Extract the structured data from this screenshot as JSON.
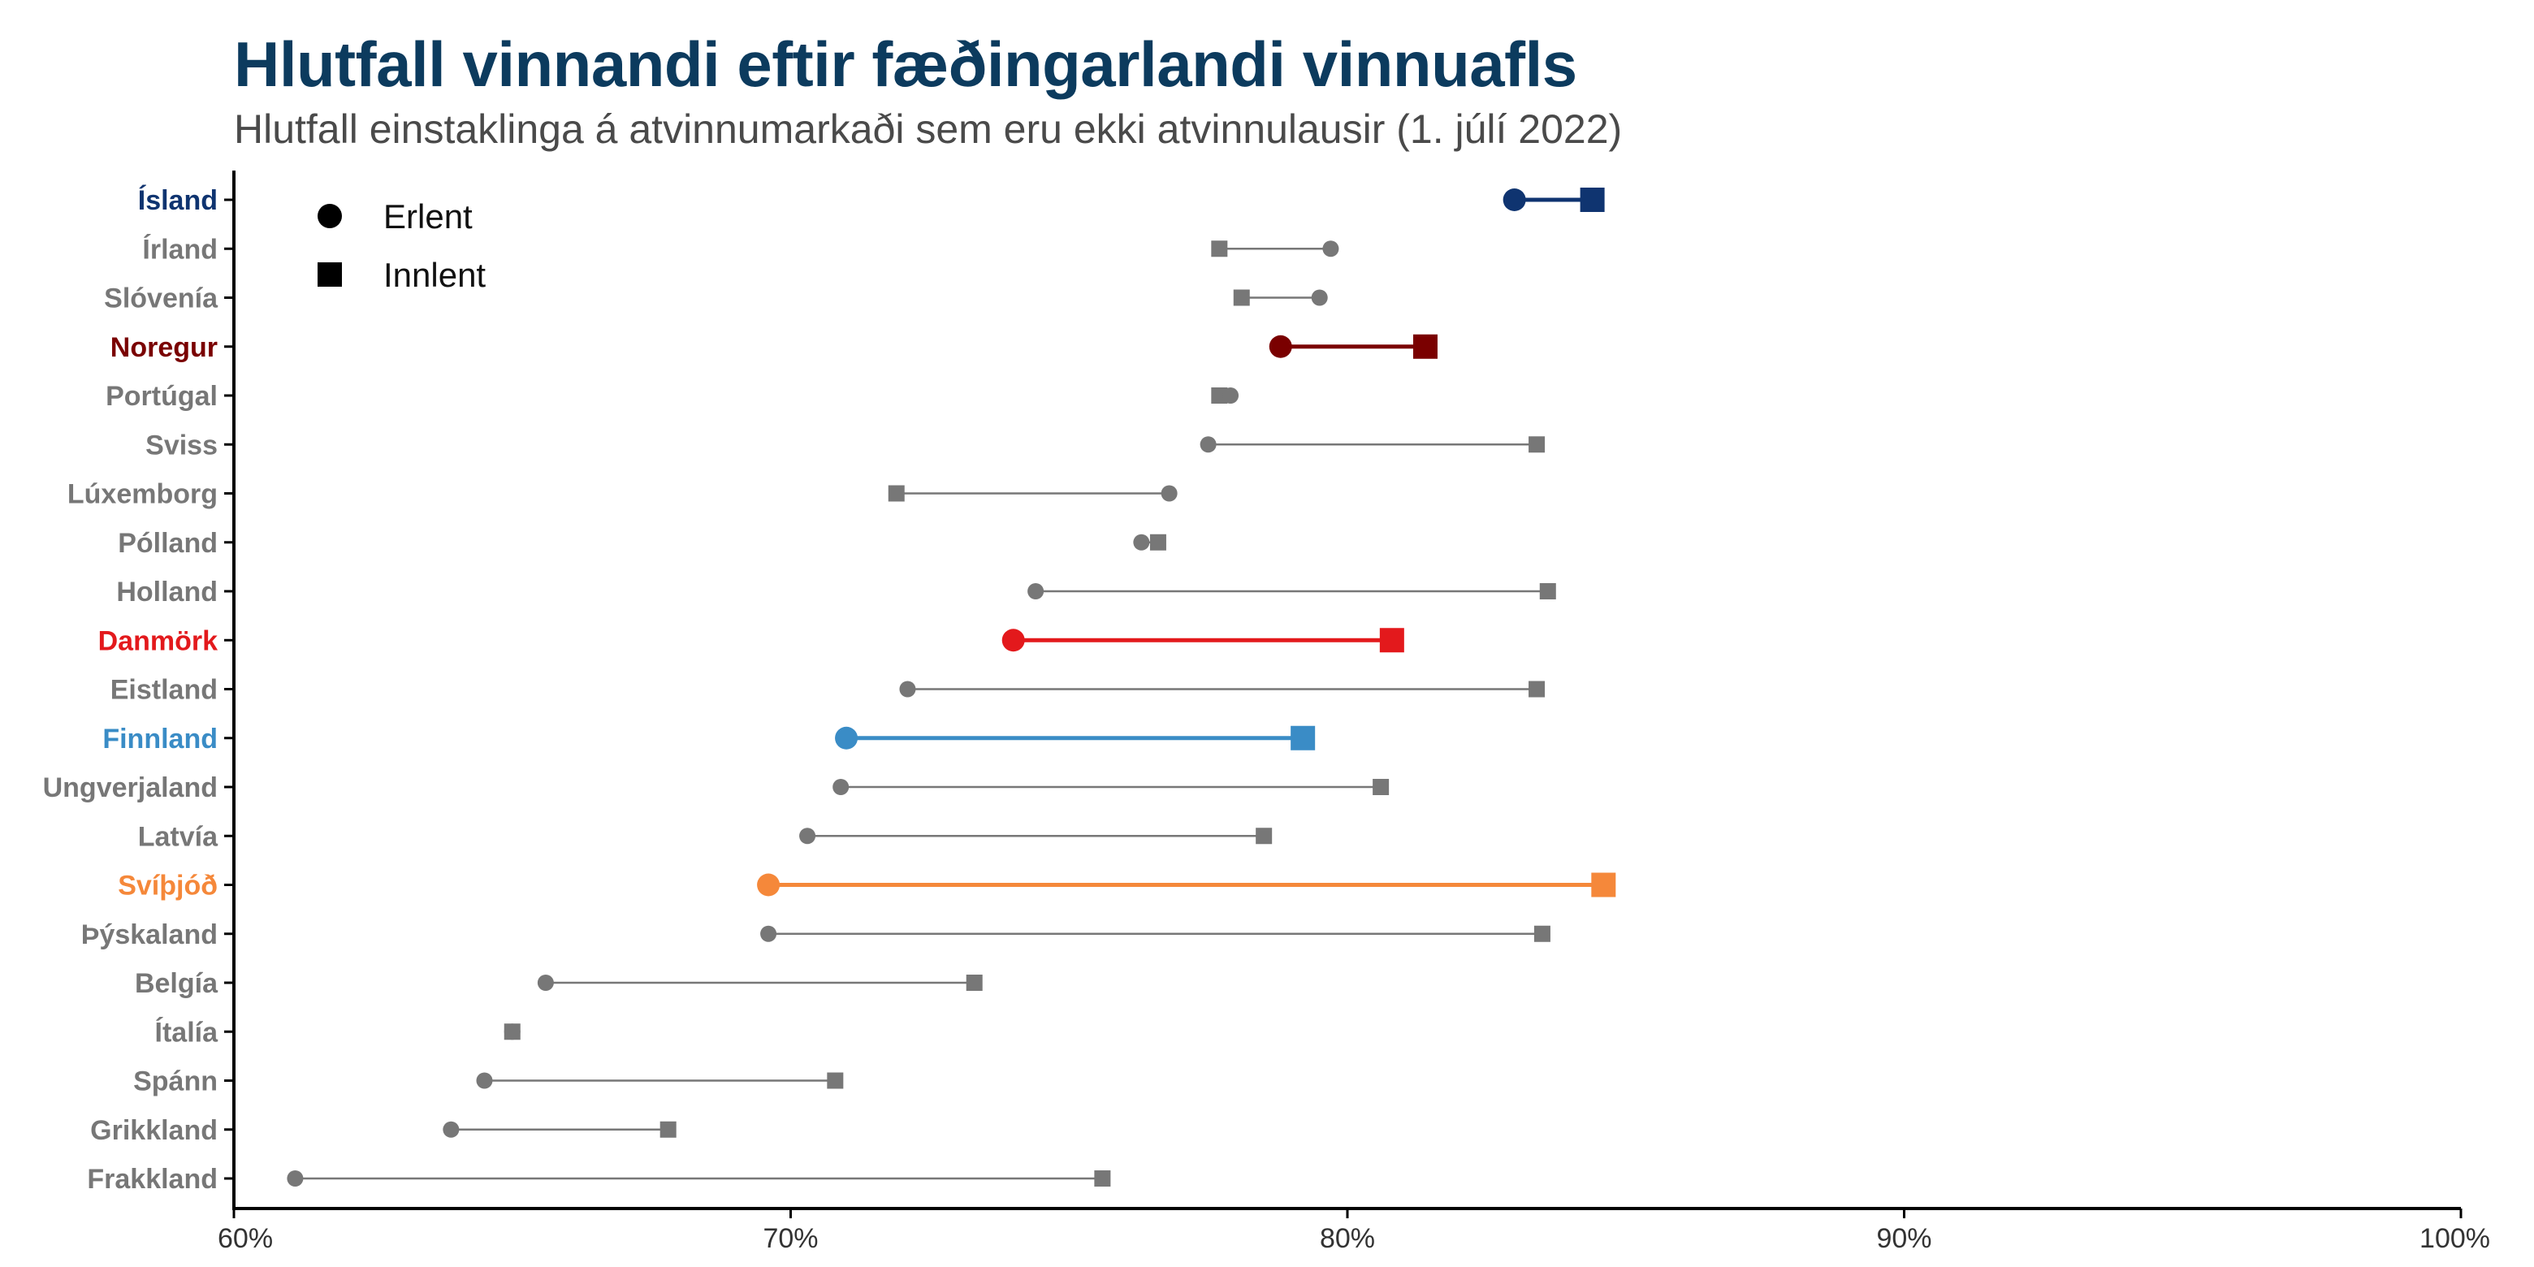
{
  "title": "Hlutfall vinnandi eftir fæðingarlandi vinnuafls",
  "subtitle": "Hlutfall einstaklinga á atvinnumarkaði sem eru ekki atvinnulausir (1. júlí 2022)",
  "chart_data": {
    "type": "dumbbell",
    "title": "Hlutfall vinnandi eftir fæðingarlandi vinnuafls",
    "subtitle": "Hlutfall einstaklinga á atvinnumarkaði sem eru ekki atvinnulausir (1. júlí 2022)",
    "xlim": [
      60,
      100
    ],
    "x_ticks": [
      60,
      70,
      80,
      90,
      100
    ],
    "x_tick_labels": [
      "60%",
      "70%",
      "80%",
      "90%",
      "100%"
    ],
    "legend": {
      "position": "top-left",
      "items": [
        {
          "label": "Erlent",
          "shape": "circle"
        },
        {
          "label": "Innlent",
          "shape": "square"
        }
      ]
    },
    "grid": false,
    "default_color": "#777777",
    "series": [
      {
        "name": "Erlent",
        "shape": "circle"
      },
      {
        "name": "Innlent",
        "shape": "square"
      }
    ],
    "rows": [
      {
        "country": "Ísland",
        "erlent": 83.0,
        "innlent": 84.4,
        "highlight": true,
        "color": "#0f3470"
      },
      {
        "country": "Írland",
        "erlent": 79.7,
        "innlent": 77.7,
        "highlight": false
      },
      {
        "country": "Slóvenía",
        "erlent": 79.5,
        "innlent": 78.1,
        "highlight": false
      },
      {
        "country": "Noregur",
        "erlent": 78.8,
        "innlent": 81.4,
        "highlight": true,
        "color": "#7a0000"
      },
      {
        "country": "Portúgal",
        "erlent": 77.9,
        "innlent": 77.7,
        "highlight": false
      },
      {
        "country": "Sviss",
        "erlent": 77.5,
        "innlent": 83.4,
        "highlight": false
      },
      {
        "country": "Lúxemborg",
        "erlent": 76.8,
        "innlent": 71.9,
        "highlight": false
      },
      {
        "country": "Pólland",
        "erlent": 76.3,
        "innlent": 76.6,
        "highlight": false
      },
      {
        "country": "Holland",
        "erlent": 74.4,
        "innlent": 83.6,
        "highlight": false
      },
      {
        "country": "Danmörk",
        "erlent": 74.0,
        "innlent": 80.8,
        "highlight": true,
        "color": "#e3191c"
      },
      {
        "country": "Eistland",
        "erlent": 72.1,
        "innlent": 83.4,
        "highlight": false
      },
      {
        "country": "Finnland",
        "erlent": 71.0,
        "innlent": 79.2,
        "highlight": true,
        "color": "#3a8cc6"
      },
      {
        "country": "Ungverjaland",
        "erlent": 70.9,
        "innlent": 80.6,
        "highlight": false
      },
      {
        "country": "Latvía",
        "erlent": 70.3,
        "innlent": 78.5,
        "highlight": false
      },
      {
        "country": "Svíþjóð",
        "erlent": 69.6,
        "innlent": 84.6,
        "highlight": true,
        "color": "#f5883a"
      },
      {
        "country": "Þýskaland",
        "erlent": 69.6,
        "innlent": 83.5,
        "highlight": false
      },
      {
        "country": "Belgía",
        "erlent": 65.6,
        "innlent": 73.3,
        "highlight": false
      },
      {
        "country": "Ítalía",
        "erlent": 65.0,
        "innlent": 65.0,
        "highlight": false
      },
      {
        "country": "Spánn",
        "erlent": 64.5,
        "innlent": 70.8,
        "highlight": false
      },
      {
        "country": "Grikkland",
        "erlent": 63.9,
        "innlent": 67.8,
        "highlight": false
      },
      {
        "country": "Frakkland",
        "erlent": 61.1,
        "innlent": 75.6,
        "highlight": false
      }
    ]
  }
}
